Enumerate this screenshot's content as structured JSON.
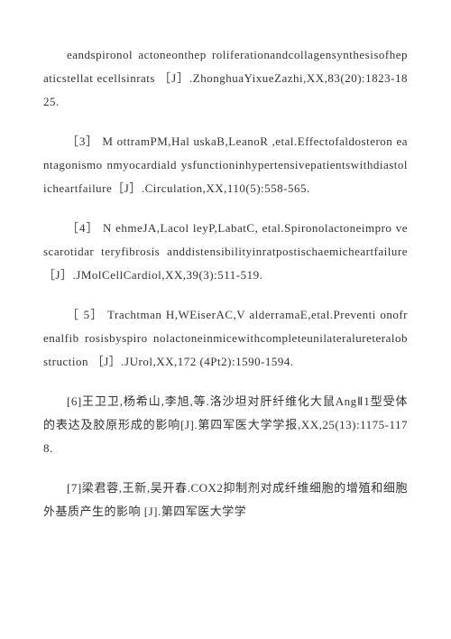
{
  "references": [
    {
      "text": "eandspironol actoneonthep roliferationandcollagensynthesisofhepaticstellat ecellsinrats ［J］.ZhonghuaYixueZazhi,XX,83(20):1823-1825."
    },
    {
      "text": "［3］ M ottramPM,Hal uskaB,LeanoR ,etal.Effectofaldosteron eantagonismo nmyocardiald ysfunctioninhypertensivepatientswithdiastolicheartfailure［J］.Circulation,XX,110(5):558-565."
    },
    {
      "text": "［4］ N ehmeJA,Lacol leyP,LabatC, etal.Spironolactoneimpro vescarotidar teryfibrosis anddistensibilityinratpostischaemicheartfailure［J］.JMolCellCardiol,XX,39(3):511-519."
    },
    {
      "text": "［ 5］ Trachtman H,WEiserAC,V alderramaE,etal.Preventi onofrenalfib rosisbyspiro nolactoneinmicewithcompleteunilateralureteralobstruction ［J］.JUrol,XX,172 (4Pt2):1590-1594."
    },
    {
      "text": "[6]王卫卫,杨希山,李旭,等.洛沙坦对肝纤维化大鼠AngⅡ1型受体的表达及胶原形成的影响[J].第四军医大学学报,XX,25(13):1175-1178."
    },
    {
      "text": "[7]梁君蓉,王新,吴开春.COX2抑制剂对成纤维细胞的增殖和细胞外基质产生的影响 [J].第四军医大学学"
    }
  ]
}
